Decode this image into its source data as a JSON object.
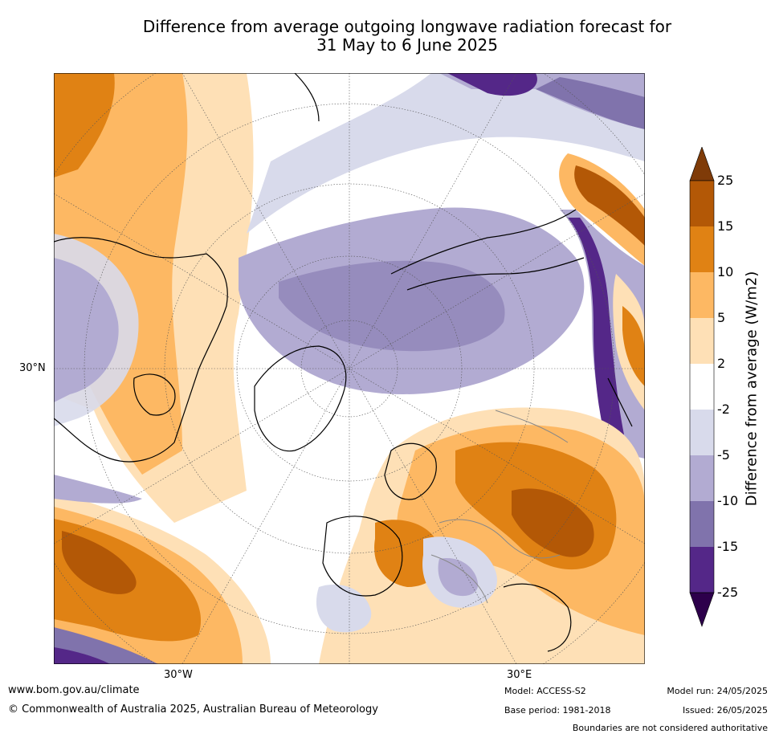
{
  "title": {
    "line1": "Difference from average outgoing longwave radiation forecast for",
    "line2": "31 May to 6 June 2025"
  },
  "axis_labels": {
    "lat": "30°N",
    "lon_west": "30°W",
    "lon_east": "30°E"
  },
  "colorbar": {
    "title": "Difference from average (W/m2)",
    "ticks": [
      "25",
      "15",
      "10",
      "5",
      "2",
      "-2",
      "-5",
      "-10",
      "-15",
      "-25"
    ],
    "colors": {
      "above_25": "#7f3b08",
      "15_25": "#b35806",
      "10_15": "#e08214",
      "5_10": "#fdb863",
      "2_5": "#fee0b6",
      "neutral": "#ffffff",
      "m2_m5": "#d8daeb",
      "m5_m10": "#b2abd2",
      "m10_m15": "#8073ac",
      "m15_m25": "#542788",
      "below_m25": "#2d004b"
    }
  },
  "footer": {
    "website": "www.bom.gov.au/climate",
    "copyright": "© Commonwealth of Australia 2025, Australian Bureau of Meteorology",
    "model": "Model: ACCESS-S2",
    "base_period": "Base period: 1981-2018",
    "model_run": "Model run: 24/05/2025",
    "issued": "Issued: 26/05/2025",
    "disclaimer": "Boundaries are not considered authoritative"
  }
}
